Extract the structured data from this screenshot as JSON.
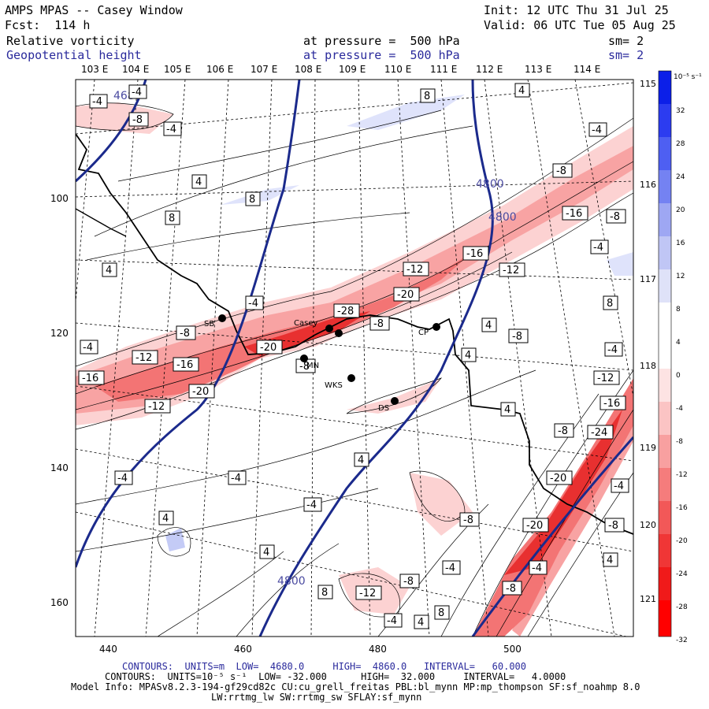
{
  "header": {
    "title": "AMPS MPAS -- Casey Window",
    "init": "Init: 12 UTC Thu 31 Jul 25",
    "fcst": "Fcst:  114 h",
    "valid": "Valid: 06 UTC Tue 05 Aug 25",
    "field1": "Relative vorticity",
    "field1_level": "at pressure =  500 hPa",
    "field1_sm": "sm= 2",
    "field2": "Geopotential height",
    "field2_level": "at pressure =  500 hPa",
    "field2_sm": "sm= 2"
  },
  "map": {
    "lon_labels_top": [
      "103 E",
      "104 E",
      "105 E",
      "106 E",
      "107 E",
      "108 E",
      "109 E",
      "110 E",
      "111 E",
      "112 E",
      "113 E",
      "114 E"
    ],
    "lon_labels_right": [
      "115 E",
      "116 E",
      "117 E",
      "118 E",
      "119 E",
      "120 E",
      "121 E"
    ],
    "x_ticks": [
      "440",
      "460",
      "480",
      "500"
    ],
    "y_ticks": [
      "100",
      "120",
      "140",
      "160"
    ],
    "height_labels": [
      "4680",
      "4800",
      "4800",
      "4800"
    ],
    "places": [
      "SB",
      "Casey",
      "CP",
      "MN",
      "WKS",
      "DS"
    ],
    "colorbar_unit": "10⁻⁵ s⁻¹",
    "colorbar_ticks": [
      "32",
      "28",
      "24",
      "20",
      "16",
      "12",
      "8",
      "4",
      "0",
      "-4",
      "-8",
      "-12",
      "-16",
      "-20",
      "-24",
      "-28",
      "-32"
    ],
    "colors": {
      "height_contour": "#1b2a8c",
      "negative_max": "#ff1a1a",
      "positive_max": "#1010e0",
      "coast": "#000000"
    }
  },
  "footer": {
    "line1_prefix": "CONTOURS:",
    "line1_units": "UNITS=m",
    "line1_low": "LOW=  4680.0",
    "line1_high": "HIGH=  4860.0",
    "line1_interval": "INTERVAL=   60.000",
    "line2_prefix": "CONTOURS:",
    "line2_units": "UNITS=10⁻⁵ s⁻¹",
    "line2_low": "LOW= -32.000",
    "line2_high": "HIGH=  32.000",
    "line2_interval": "INTERVAL=   4.0000",
    "model_info": "Model Info: MPASv8.2.3-194-gf29cd82c CU:cu_grell_freitas PBL:bl_mynn MP:mp_thompson SF:sf_noahmp 8.0",
    "model_info2": "LW:rrtmg_lw SW:rrtmg_sw SFLAY:sf_mynn"
  }
}
